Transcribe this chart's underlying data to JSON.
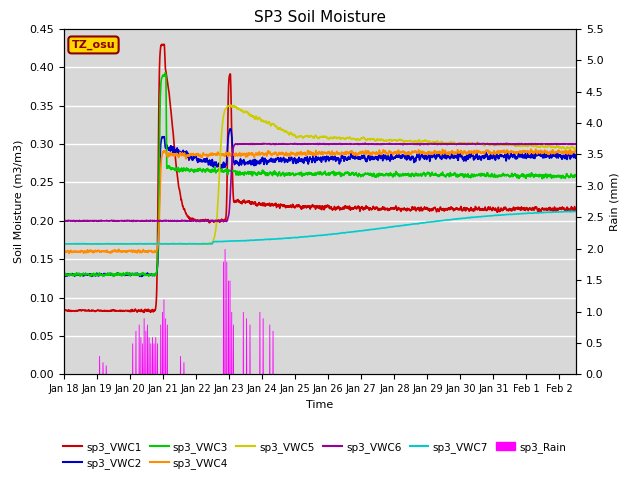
{
  "title": "SP3 Soil Moisture",
  "xlabel": "Time",
  "ylabel_left": "Soil Moisture (m3/m3)",
  "ylabel_right": "Rain (mm)",
  "ylim_left": [
    0,
    0.45
  ],
  "ylim_right": [
    0.0,
    5.5
  ],
  "x_tick_labels": [
    "Jan 18",
    "Jan 19",
    "Jan 20",
    "Jan 21",
    "Jan 22",
    "Jan 23",
    "Jan 24",
    "Jan 25",
    "Jan 26",
    "Jan 27",
    "Jan 28",
    "Jan 29",
    "Jan 30",
    "Jan 31",
    "Feb 1",
    "Feb 2"
  ],
  "annotation_text": "TZ_osu",
  "annotation_color": "#8B0000",
  "annotation_bg": "#FFD700",
  "bg_color": "#D8D8D8",
  "colors": {
    "VWC1": "#CC0000",
    "VWC2": "#0000CC",
    "VWC3": "#00CC00",
    "VWC4": "#FF8C00",
    "VWC5": "#CCCC00",
    "VWC6": "#990099",
    "VWC7": "#00CCCC",
    "Rain": "#FF00FF"
  },
  "legend_entries": [
    "sp3_VWC1",
    "sp3_VWC2",
    "sp3_VWC3",
    "sp3_VWC4",
    "sp3_VWC5",
    "sp3_VWC6",
    "sp3_VWC7",
    "sp3_Rain"
  ]
}
